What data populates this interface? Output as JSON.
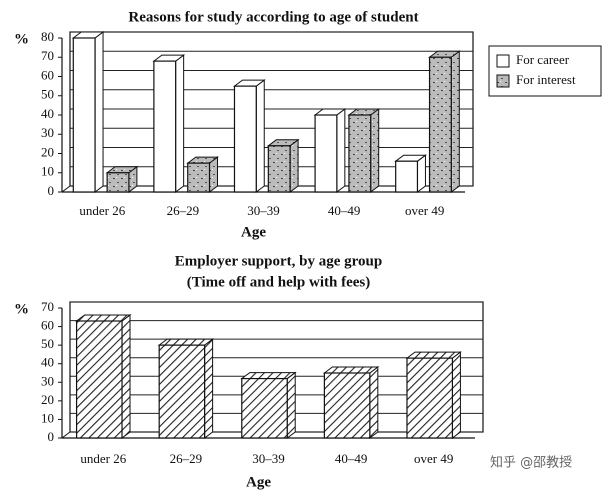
{
  "chart_data": [
    {
      "type": "bar",
      "title": "Reasons for study according to age of student",
      "ylabel": "%",
      "xlabel": "Age",
      "categories": [
        "under 26",
        "26–29",
        "30–39",
        "40–49",
        "over 49"
      ],
      "series": [
        {
          "name": "For career",
          "color": "#ffffff",
          "pattern": "plain",
          "values": [
            80,
            68,
            55,
            40,
            16
          ]
        },
        {
          "name": "For interest",
          "color": "#555555",
          "pattern": "speckle",
          "values": [
            10,
            15,
            24,
            40,
            70
          ]
        }
      ],
      "ylim": [
        0,
        80
      ],
      "yticks": [
        0,
        10,
        20,
        30,
        40,
        50,
        60,
        70,
        80
      ],
      "grid": true,
      "legend": "right"
    },
    {
      "type": "bar",
      "title": "Employer support, by age group",
      "subtitle": "(Time off and help with fees)",
      "ylabel": "%",
      "xlabel": "Age",
      "categories": [
        "under 26",
        "26–29",
        "30–39",
        "40–49",
        "over 49"
      ],
      "values": [
        63,
        50,
        32,
        35,
        43
      ],
      "color": "#222222",
      "pattern": "hatch",
      "ylim": [
        0,
        70
      ],
      "yticks": [
        0,
        10,
        20,
        30,
        40,
        50,
        60,
        70
      ],
      "grid": true
    }
  ],
  "watermark": "知乎 @邵教授"
}
